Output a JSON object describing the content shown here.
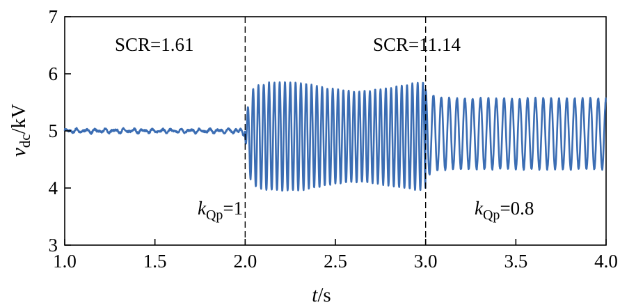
{
  "chart_data": {
    "type": "line",
    "xlabel": {
      "main": "t",
      "rest": "/s"
    },
    "ylabel": {
      "main": "v",
      "sub": "dc",
      "rest": "/kV"
    },
    "xlim": [
      1.0,
      4.0
    ],
    "ylim": [
      3,
      7
    ],
    "xticks": [
      1.0,
      1.5,
      2.0,
      2.5,
      3.0,
      3.5,
      4.0
    ],
    "xtick_labels": [
      "1.0",
      "1.5",
      "2.0",
      "2.5",
      "3.0",
      "3.5",
      "4.0"
    ],
    "yticks": [
      3,
      4,
      5,
      6,
      7
    ],
    "ytick_labels": [
      "3",
      "4",
      "5",
      "6",
      "7"
    ],
    "grid": false,
    "line_color": "#3b6db3",
    "vlines": [
      2.0,
      3.0
    ],
    "annotations": {
      "scr1": "SCR=1.61",
      "scr2": "SCR=11.14",
      "kqp1": {
        "k": "k",
        "sub": "Qp",
        "rest": "=1"
      },
      "kqp2": {
        "k": "k",
        "sub": "Qp",
        "rest": "=0.8"
      }
    },
    "segments": [
      {
        "t_start": 1.0,
        "t_end": 2.0,
        "mean": 5.0,
        "amplitude": 0.04,
        "description_values": "steady around 5 kV"
      },
      {
        "t_start": 2.0,
        "t_end": 3.0,
        "mean": 4.9,
        "amplitude": 0.95,
        "frequency_hz": 34,
        "max": 5.95,
        "min": 3.9
      },
      {
        "t_start": 3.0,
        "t_end": 4.0,
        "mean": 4.95,
        "amplitude": 0.62,
        "frequency_hz": 23,
        "max": 5.85,
        "min": 4.2
      }
    ]
  }
}
